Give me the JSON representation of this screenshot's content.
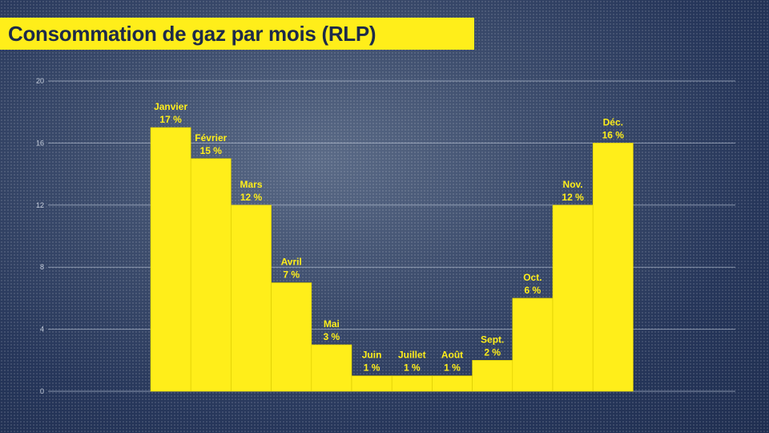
{
  "chart_data": {
    "type": "bar",
    "title": "Consommation de gaz par mois (RLP)",
    "categories": [
      "Janvier",
      "Février",
      "Mars",
      "Avril",
      "Mai",
      "Juin",
      "Juillet",
      "Août",
      "Sept.",
      "Oct.",
      "Nov.",
      "Déc."
    ],
    "values": [
      17,
      15,
      12,
      7,
      3,
      1,
      1,
      1,
      2,
      6,
      12,
      16
    ],
    "data_labels": [
      "17 %",
      "15 %",
      "12 %",
      "7 %",
      "3 %",
      "1 %",
      "1 %",
      "1 %",
      "2 %",
      "6 %",
      "12 %",
      "16 %"
    ],
    "ylim": [
      0,
      20
    ],
    "yticks": [
      0,
      4,
      8,
      12,
      16,
      20
    ],
    "grid": true,
    "bar_color": "#ffee1a",
    "title_bg": "#ffee1a",
    "background": "#26365a"
  }
}
